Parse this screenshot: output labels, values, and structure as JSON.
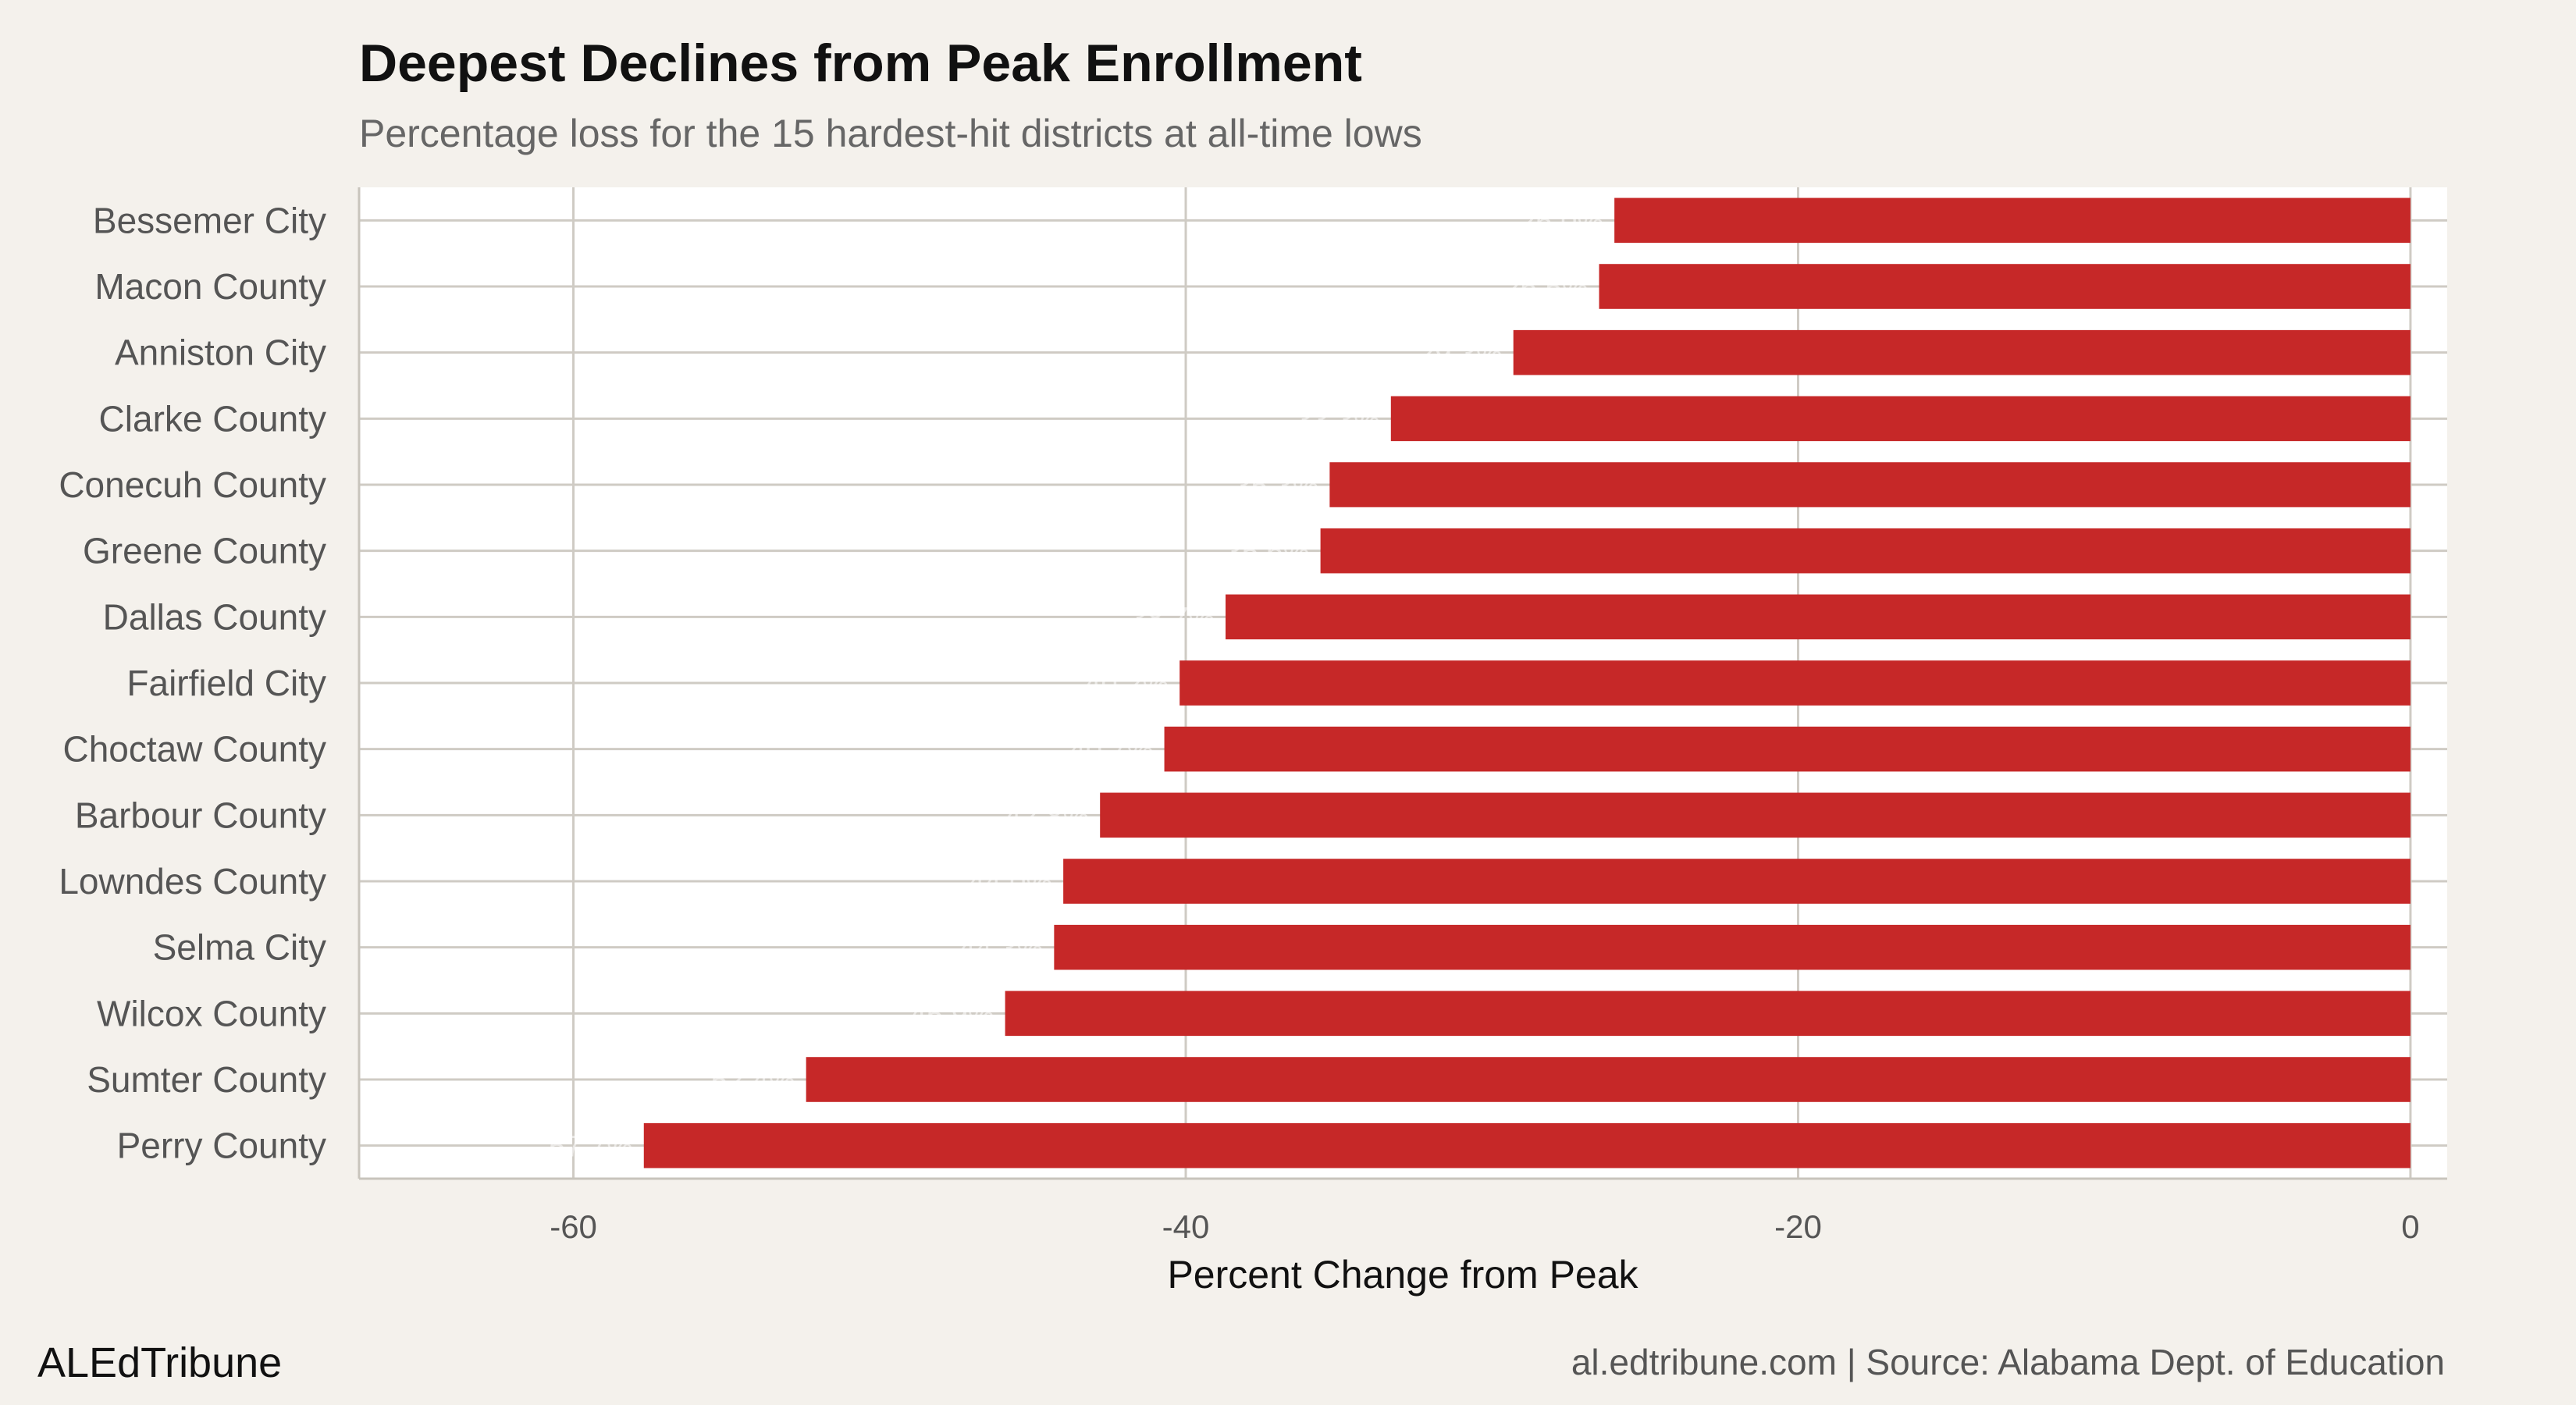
{
  "chart_data": {
    "type": "bar",
    "orientation": "horizontal",
    "title": "Deepest Declines from Peak Enrollment",
    "subtitle": "Percentage loss for the 15 hardest-hit districts at all-time lows",
    "xlabel": "Percent Change from Peak",
    "ylabel": "",
    "xlim": [
      -67,
      1.2
    ],
    "xticks": [
      -60,
      -40,
      -20,
      0
    ],
    "grid": true,
    "bar_color": "#c62828",
    "categories": [
      "Bessemer City",
      "Macon County",
      "Anniston City",
      "Clarke County",
      "Conecuh County",
      "Greene County",
      "Dallas County",
      "Fairfield City",
      "Choctaw County",
      "Barbour County",
      "Lowndes County",
      "Selma City",
      "Wilcox County",
      "Sumter County",
      "Perry County"
    ],
    "values": [
      -26.0,
      -26.5,
      -29.3,
      -33.3,
      -35.3,
      -35.6,
      -38.7,
      -40.2,
      -40.7,
      -42.8,
      -44.0,
      -44.3,
      -45.9,
      -52.4,
      -57.7
    ]
  },
  "footer": {
    "brand": "ALEdTribune",
    "source": "al.edtribune.com | Source: Alabama Dept. of Education"
  }
}
